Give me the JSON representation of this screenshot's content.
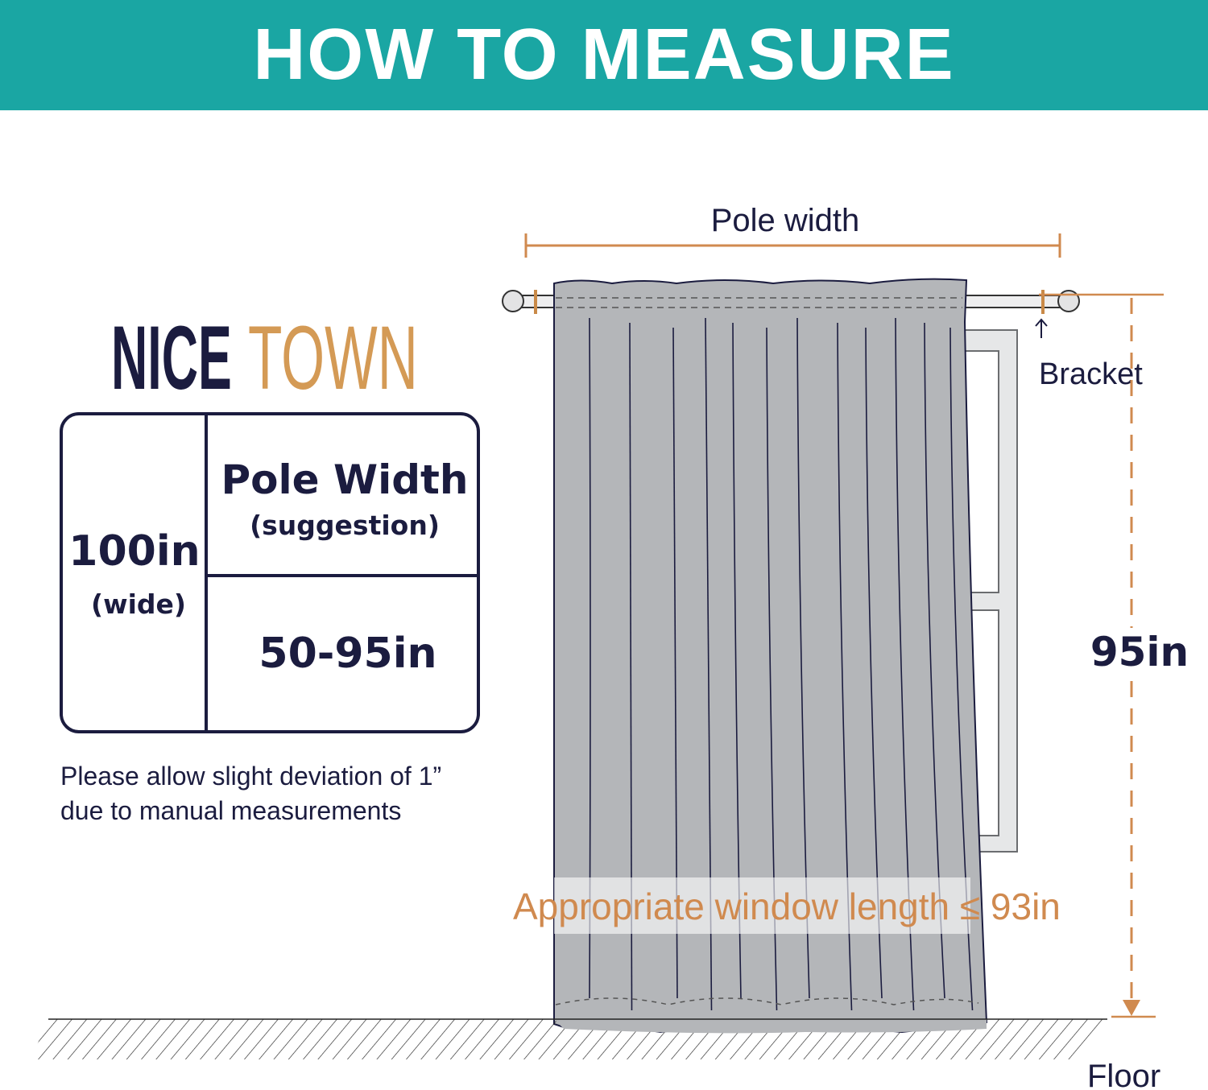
{
  "header": {
    "title": "HOW TO MEASURE"
  },
  "logo": {
    "part1": "NICE",
    "part2": "TOWN"
  },
  "size_table": {
    "width_value": "100in",
    "width_label": "(wide)",
    "pole_header": "Pole Width",
    "pole_subheader": "(suggestion)",
    "pole_range": "50-95in"
  },
  "note": {
    "line1": "Please allow slight deviation of 1”",
    "line2": "due to manual measurements"
  },
  "diagram": {
    "pole_width_label": "Pole width",
    "bracket_label": "Bracket",
    "length_label": "95in",
    "window_note": "Appropriate window length ≤ 93in",
    "floor_label": "Floor"
  },
  "colors": {
    "banner": "#1aa6a3",
    "navy": "#1b1c3f",
    "accent": "#d08a4f",
    "curtain": "#b4b6b9"
  }
}
